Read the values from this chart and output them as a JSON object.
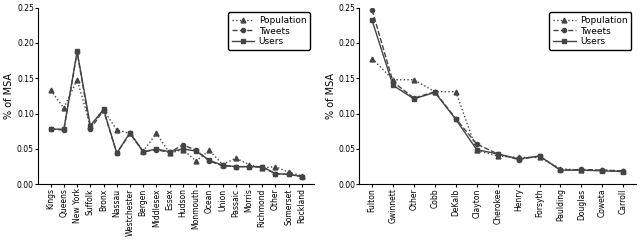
{
  "left": {
    "categories": [
      "Kings",
      "Queens",
      "New York",
      "Suffolk",
      "Bronx",
      "Nassau",
      "Westchester",
      "Bergen",
      "Middlesex",
      "Essex",
      "Hudson",
      "Monmouth",
      "Ocean",
      "Union",
      "Passaic",
      "Morris",
      "Richmond",
      "Other",
      "Somerset",
      "Rockland"
    ],
    "population": [
      0.133,
      0.108,
      0.148,
      0.083,
      0.105,
      0.077,
      0.072,
      0.047,
      0.072,
      0.044,
      0.049,
      0.033,
      0.048,
      0.028,
      0.037,
      0.028,
      0.023,
      0.025,
      0.017,
      0.012
    ],
    "tweets": [
      0.078,
      0.077,
      0.187,
      0.078,
      0.105,
      0.044,
      0.072,
      0.046,
      0.049,
      0.045,
      0.056,
      0.048,
      0.033,
      0.026,
      0.025,
      0.025,
      0.024,
      0.015,
      0.014,
      0.011
    ],
    "users": [
      0.078,
      0.078,
      0.188,
      0.083,
      0.106,
      0.044,
      0.073,
      0.046,
      0.05,
      0.046,
      0.05,
      0.047,
      0.034,
      0.027,
      0.025,
      0.025,
      0.025,
      0.015,
      0.014,
      0.011
    ]
  },
  "right": {
    "categories": [
      "Fulton",
      "Gwinnett",
      "Other",
      "Cobb",
      "DeKalb",
      "Clayton",
      "Cherokee",
      "Henry",
      "Forsyth",
      "Paulding",
      "Douglas",
      "Coweta",
      "Carroll"
    ],
    "population": [
      0.178,
      0.148,
      0.148,
      0.131,
      0.131,
      0.048,
      0.04,
      0.038,
      0.038,
      0.022,
      0.02,
      0.02,
      0.019
    ],
    "tweets": [
      0.247,
      0.145,
      0.122,
      0.131,
      0.093,
      0.057,
      0.043,
      0.035,
      0.04,
      0.02,
      0.021,
      0.02,
      0.019
    ],
    "users": [
      0.232,
      0.14,
      0.121,
      0.13,
      0.092,
      0.049,
      0.043,
      0.036,
      0.04,
      0.02,
      0.02,
      0.019,
      0.018
    ]
  },
  "ylabel": "% of MSA",
  "ylim": [
    0.0,
    0.25
  ],
  "yticks": [
    0.0,
    0.05,
    0.1,
    0.15,
    0.2,
    0.25
  ],
  "legend_labels": [
    "Population",
    "Tweets",
    "Users"
  ],
  "color": "#444444",
  "tick_fontsize": 5.5,
  "label_fontsize": 7,
  "legend_fontsize": 6.5,
  "linewidth": 1.0,
  "marker_size_tri": 3.5,
  "marker_size_circ": 3.0,
  "marker_size_sq": 3.0
}
